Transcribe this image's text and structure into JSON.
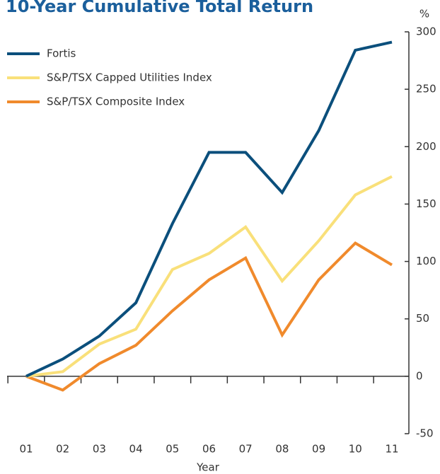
{
  "chart_data": {
    "type": "line",
    "title": "10-Year Cumulative Total Return",
    "y_unit": "%",
    "x_label": "Year",
    "categories": [
      "01",
      "02",
      "03",
      "04",
      "05",
      "06",
      "07",
      "08",
      "09",
      "10",
      "11"
    ],
    "series": [
      {
        "name": "Fortis",
        "color": "#0b4f7c",
        "values": [
          0,
          15,
          35,
          64,
          133,
          195,
          195,
          160,
          214,
          284,
          291
        ]
      },
      {
        "name": "S&P/TSX Capped Utilities Index",
        "color": "#f9e07a",
        "values": [
          0,
          4,
          28,
          41,
          93,
          107,
          130,
          83,
          118,
          158,
          174
        ]
      },
      {
        "name": "S&P/TSX Composite Index",
        "color": "#f08a2c",
        "values": [
          0,
          -12,
          11,
          27,
          57,
          84,
          103,
          36,
          84,
          116,
          97
        ]
      }
    ],
    "ylim": [
      -50,
      300
    ],
    "yticks": [
      -50,
      0,
      50,
      100,
      150,
      200,
      250,
      300
    ],
    "y_axis_side": "right",
    "grid": false,
    "legend": "upper left"
  }
}
